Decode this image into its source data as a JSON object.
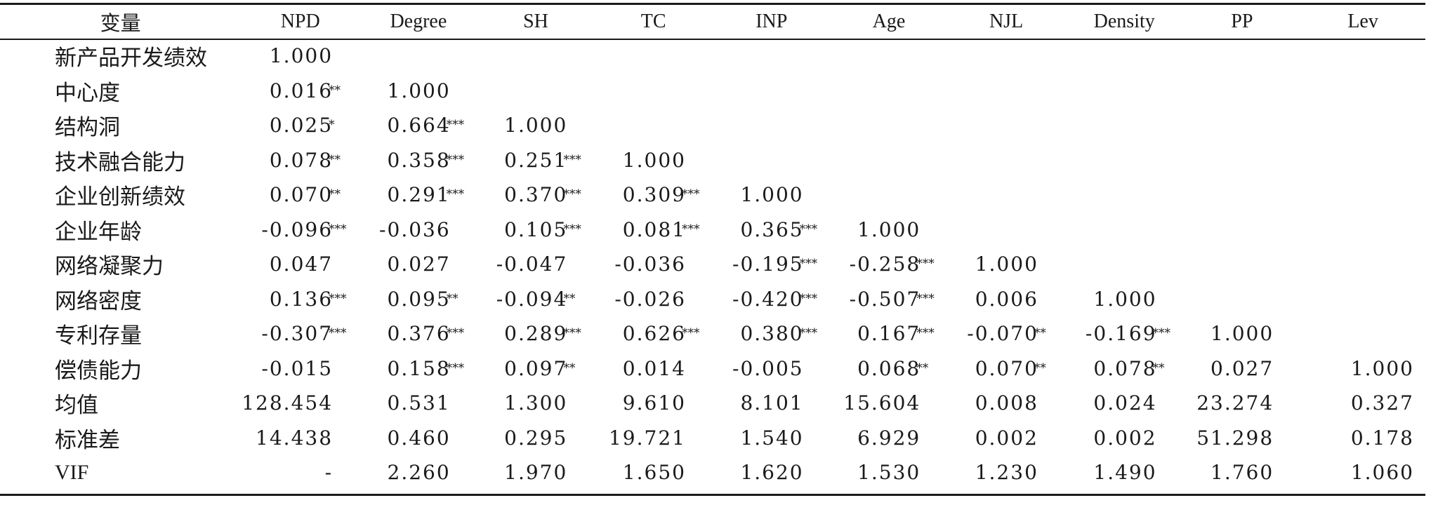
{
  "table": {
    "header": [
      "变量",
      "NPD",
      "Degree",
      "SH",
      "TC",
      "INP",
      "Age",
      "NJL",
      "Density",
      "PP",
      "Lev"
    ],
    "rows": [
      {
        "label": "新产品开发绩效",
        "cells": [
          {
            "v": "1.000"
          }
        ]
      },
      {
        "label": "中心度",
        "cells": [
          {
            "v": "0.016",
            "s": "**"
          },
          {
            "v": "1.000"
          }
        ]
      },
      {
        "label": "结构洞",
        "cells": [
          {
            "v": "0.025",
            "s": "*"
          },
          {
            "v": "0.664",
            "s": "***"
          },
          {
            "v": "1.000"
          }
        ]
      },
      {
        "label": "技术融合能力",
        "cells": [
          {
            "v": "0.078",
            "s": "**"
          },
          {
            "v": "0.358",
            "s": "***"
          },
          {
            "v": "0.251",
            "s": "***"
          },
          {
            "v": "1.000"
          }
        ]
      },
      {
        "label": "企业创新绩效",
        "cells": [
          {
            "v": "0.070",
            "s": "**"
          },
          {
            "v": "0.291",
            "s": "***"
          },
          {
            "v": "0.370",
            "s": "***"
          },
          {
            "v": "0.309",
            "s": "***"
          },
          {
            "v": "1.000"
          }
        ]
      },
      {
        "label": "企业年龄",
        "cells": [
          {
            "v": "-0.096",
            "s": "***"
          },
          {
            "v": "-0.036"
          },
          {
            "v": "0.105",
            "s": "***"
          },
          {
            "v": "0.081",
            "s": "***"
          },
          {
            "v": "0.365",
            "s": "***"
          },
          {
            "v": "1.000"
          }
        ]
      },
      {
        "label": "网络凝聚力",
        "cells": [
          {
            "v": "0.047"
          },
          {
            "v": "0.027"
          },
          {
            "v": "-0.047"
          },
          {
            "v": "-0.036"
          },
          {
            "v": "-0.195",
            "s": "***"
          },
          {
            "v": "-0.258",
            "s": "***"
          },
          {
            "v": "1.000"
          }
        ]
      },
      {
        "label": "网络密度",
        "cells": [
          {
            "v": "0.136",
            "s": "***"
          },
          {
            "v": "0.095",
            "s": "**"
          },
          {
            "v": "-0.094",
            "s": "**"
          },
          {
            "v": "-0.026"
          },
          {
            "v": "-0.420",
            "s": "***"
          },
          {
            "v": "-0.507",
            "s": "***"
          },
          {
            "v": "0.006"
          },
          {
            "v": "1.000"
          }
        ]
      },
      {
        "label": "专利存量",
        "cells": [
          {
            "v": "-0.307",
            "s": "***"
          },
          {
            "v": "0.376",
            "s": "***"
          },
          {
            "v": "0.289",
            "s": "***"
          },
          {
            "v": "0.626",
            "s": "***"
          },
          {
            "v": "0.380",
            "s": "***"
          },
          {
            "v": "0.167",
            "s": "***"
          },
          {
            "v": "-0.070",
            "s": "**"
          },
          {
            "v": "-0.169",
            "s": "***"
          },
          {
            "v": "1.000"
          }
        ]
      },
      {
        "label": "偿债能力",
        "cells": [
          {
            "v": "-0.015"
          },
          {
            "v": "0.158",
            "s": "***"
          },
          {
            "v": "0.097",
            "s": "**"
          },
          {
            "v": "0.014"
          },
          {
            "v": "-0.005"
          },
          {
            "v": "0.068",
            "s": "**"
          },
          {
            "v": "0.070",
            "s": "**"
          },
          {
            "v": "0.078",
            "s": "**"
          },
          {
            "v": "0.027"
          },
          {
            "v": "1.000"
          }
        ]
      },
      {
        "label": "均值",
        "cells": [
          {
            "v": "128.454"
          },
          {
            "v": "0.531"
          },
          {
            "v": "1.300"
          },
          {
            "v": "9.610"
          },
          {
            "v": "8.101"
          },
          {
            "v": "15.604"
          },
          {
            "v": "0.008"
          },
          {
            "v": "0.024"
          },
          {
            "v": "23.274"
          },
          {
            "v": "0.327"
          }
        ]
      },
      {
        "label": "标准差",
        "cells": [
          {
            "v": "14.438"
          },
          {
            "v": "0.460"
          },
          {
            "v": "0.295"
          },
          {
            "v": "19.721"
          },
          {
            "v": "1.540"
          },
          {
            "v": "6.929"
          },
          {
            "v": "0.002"
          },
          {
            "v": "0.002"
          },
          {
            "v": "51.298"
          },
          {
            "v": "0.178"
          }
        ]
      },
      {
        "label": "VIF",
        "cells": [
          {
            "v": "-"
          },
          {
            "v": "2.260"
          },
          {
            "v": "1.970"
          },
          {
            "v": "1.650"
          },
          {
            "v": "1.620"
          },
          {
            "v": "1.530"
          },
          {
            "v": "1.230"
          },
          {
            "v": "1.490"
          },
          {
            "v": "1.760"
          },
          {
            "v": "1.060"
          }
        ]
      }
    ]
  }
}
